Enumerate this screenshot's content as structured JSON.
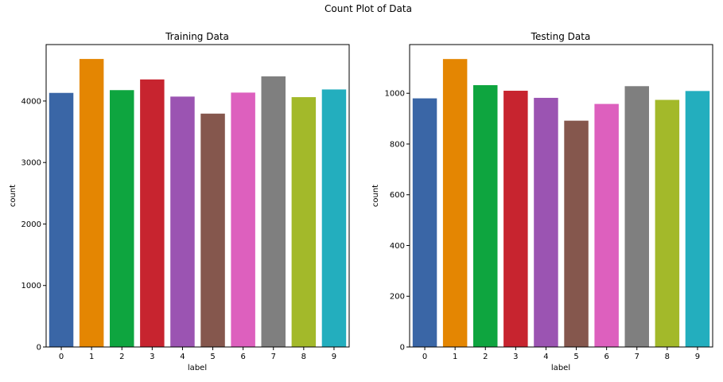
{
  "figure": {
    "suptitle": "Count Plot of Data"
  },
  "palette": [
    "#3a66a6",
    "#e48602",
    "#0ea53f",
    "#c7242f",
    "#9b54b2",
    "#85574d",
    "#dd60be",
    "#7f7f7f",
    "#a3b92a",
    "#23aebe"
  ],
  "chart_data": [
    {
      "type": "bar",
      "title": "Training Data",
      "xlabel": "label",
      "ylabel": "count",
      "categories": [
        "0",
        "1",
        "2",
        "3",
        "4",
        "5",
        "6",
        "7",
        "8",
        "9"
      ],
      "values": [
        4132,
        4684,
        4177,
        4351,
        4072,
        3795,
        4137,
        4401,
        4063,
        4188
      ],
      "ylim": [
        0,
        4918
      ],
      "yticks": [
        0,
        1000,
        2000,
        3000,
        4000
      ],
      "grid": false,
      "legend": "none"
    },
    {
      "type": "bar",
      "title": "Testing Data",
      "xlabel": "label",
      "ylabel": "count",
      "categories": [
        "0",
        "1",
        "2",
        "3",
        "4",
        "5",
        "6",
        "7",
        "8",
        "9"
      ],
      "values": [
        980,
        1135,
        1032,
        1010,
        982,
        892,
        958,
        1028,
        974,
        1009
      ],
      "ylim": [
        0,
        1192
      ],
      "yticks": [
        0,
        200,
        400,
        600,
        800,
        1000
      ],
      "grid": false,
      "legend": "none"
    }
  ]
}
